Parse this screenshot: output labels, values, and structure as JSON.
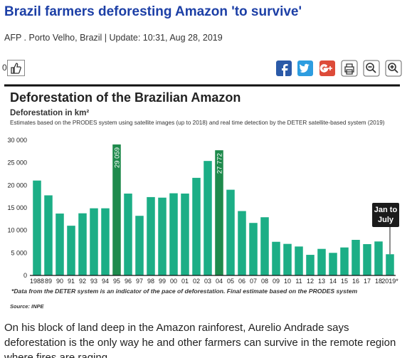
{
  "header": {
    "headline": "Brazil farmers deforesting Amazon 'to survive'",
    "byline": "AFP . Porto Velho, Brazil | Update: 10:31, Aug 28, 2019",
    "likes": 0
  },
  "chart_data": {
    "type": "bar",
    "title": "Deforestation of the Brazilian Amazon",
    "subtitle": "Deforestation in km²",
    "note": "Estimates based on the PRODES system using satellite images (up to 2018) and real time detection by the DETER satellite-based system (2019)",
    "categories": [
      "1988",
      "89",
      "90",
      "91",
      "92",
      "93",
      "94",
      "95",
      "96",
      "97",
      "98",
      "99",
      "00",
      "01",
      "02",
      "03",
      "04",
      "05",
      "06",
      "07",
      "08",
      "09",
      "10",
      "11",
      "12",
      "13",
      "14",
      "15",
      "16",
      "17",
      "18",
      "2019*"
    ],
    "values": [
      21050,
      17770,
      13730,
      11030,
      13786,
      14896,
      14896,
      29059,
      18161,
      13227,
      17383,
      17259,
      18226,
      18165,
      21651,
      25396,
      27772,
      19014,
      14286,
      11651,
      12911,
      7464,
      7000,
      6418,
      4571,
      5891,
      5012,
      6207,
      7893,
      6947,
      7536,
      4700
    ],
    "value_labels": [
      null,
      null,
      null,
      null,
      null,
      null,
      null,
      "29 059",
      null,
      null,
      null,
      null,
      null,
      null,
      null,
      null,
      "27 772",
      null,
      null,
      null,
      null,
      null,
      null,
      null,
      null,
      null,
      null,
      null,
      null,
      null,
      null,
      null
    ],
    "color": "#1cae86",
    "highlight_color": "#1e8a4c",
    "ylim": [
      0,
      30000
    ],
    "yticks": [
      0,
      {
        "value": 5000,
        "label": "5 000"
      },
      {
        "value": 10000,
        "label": "10 000"
      },
      {
        "value": 15000,
        "label": "15 000"
      },
      {
        "value": 20000,
        "label": "20 000"
      },
      {
        "value": 25000,
        "label": "25 000"
      },
      {
        "value": 30000,
        "label": "30 000"
      }
    ],
    "grid": false,
    "annotation": "Jan to July",
    "footnote": "*Data from the DETER system is an indicator of the pace of deforestation. Final estimate based on the PRODES system",
    "source": "Source: INPE"
  },
  "body": "On his block of land deep in the Amazon rainforest, Aurelio Andrade says deforestation is the only way he and other farmers can survive in the remote region where fires are raging."
}
